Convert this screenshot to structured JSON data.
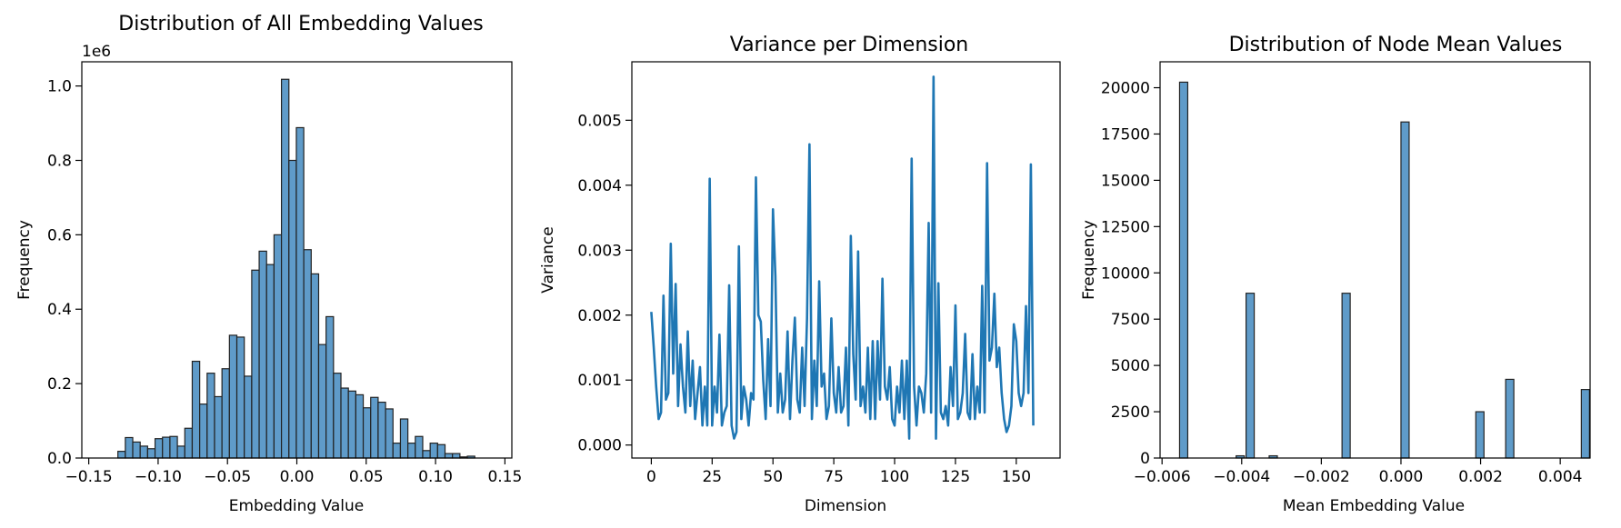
{
  "chart_data": [
    {
      "type": "bar",
      "title": "Distribution of All Embedding Values",
      "xlabel": "Embedding Value",
      "ylabel": "Frequency",
      "offset_text": "1e6",
      "xlim": [
        -0.155,
        0.155
      ],
      "ylim": [
        0,
        1.065
      ],
      "xticks": [
        -0.15,
        -0.1,
        -0.05,
        0.0,
        0.05,
        0.1,
        0.15
      ],
      "xtick_labels": [
        "−0.15",
        "−0.10",
        "−0.05",
        "0.00",
        "0.05",
        "0.10",
        "0.15"
      ],
      "yticks": [
        0.0,
        0.2,
        0.4,
        0.6,
        0.8,
        1.0
      ],
      "ytick_labels": [
        "0.0",
        "0.2",
        "0.4",
        "0.6",
        "0.8",
        "1.0"
      ],
      "bin_start": -0.129,
      "bin_width": 0.00536,
      "values": [
        0.018,
        0.055,
        0.043,
        0.032,
        0.025,
        0.052,
        0.056,
        0.058,
        0.032,
        0.08,
        0.26,
        0.145,
        0.228,
        0.165,
        0.24,
        0.33,
        0.325,
        0.22,
        0.505,
        0.556,
        0.52,
        0.6,
        1.018,
        0.8,
        0.888,
        0.56,
        0.495,
        0.305,
        0.38,
        0.228,
        0.188,
        0.18,
        0.17,
        0.135,
        0.163,
        0.15,
        0.132,
        0.04,
        0.105,
        0.04,
        0.058,
        0.02,
        0.04,
        0.036,
        0.012,
        0.012,
        0.003,
        0.005
      ]
    },
    {
      "type": "line",
      "title": "Variance per Dimension",
      "xlabel": "Dimension",
      "ylabel": "Variance",
      "xlim": [
        -8,
        168
      ],
      "ylim": [
        -0.0002,
        0.0059
      ],
      "xticks": [
        0,
        25,
        50,
        75,
        100,
        125,
        150
      ],
      "xtick_labels": [
        "0",
        "25",
        "50",
        "75",
        "100",
        "125",
        "150"
      ],
      "yticks": [
        0.0,
        0.001,
        0.002,
        0.003,
        0.004,
        0.005
      ],
      "ytick_labels": [
        "0.000",
        "0.001",
        "0.002",
        "0.003",
        "0.004",
        "0.005"
      ],
      "x_start": 0,
      "values": [
        0.00205,
        0.0015,
        0.0009,
        0.0004,
        0.0005,
        0.0023,
        0.0007,
        0.0008,
        0.0031,
        0.0011,
        0.00248,
        0.0006,
        0.00155,
        0.0009,
        0.0005,
        0.00175,
        0.0006,
        0.0013,
        0.0004,
        0.0008,
        0.0012,
        0.0003,
        0.0009,
        0.0003,
        0.0041,
        0.0003,
        0.0009,
        0.0005,
        0.0017,
        0.0003,
        0.0005,
        0.0006,
        0.00246,
        0.0003,
        0.0001,
        0.0002,
        0.00306,
        0.0004,
        0.0009,
        0.0007,
        0.0003,
        0.0008,
        0.0007,
        0.00412,
        0.002,
        0.0019,
        0.001,
        0.0004,
        0.00163,
        0.0006,
        0.00363,
        0.0026,
        0.0005,
        0.0011,
        0.0005,
        0.0007,
        0.00175,
        0.0004,
        0.0013,
        0.00196,
        0.0007,
        0.0005,
        0.0015,
        0.0006,
        0.00195,
        0.00463,
        0.0004,
        0.0013,
        0.0006,
        0.00252,
        0.0009,
        0.0011,
        0.0004,
        0.0006,
        0.00195,
        0.0008,
        0.0005,
        0.0012,
        0.0005,
        0.0006,
        0.0015,
        0.0003,
        0.00322,
        0.0014,
        0.0007,
        0.00298,
        0.0006,
        0.0009,
        0.0005,
        0.0015,
        0.0004,
        0.0016,
        0.0004,
        0.0016,
        0.0007,
        0.00256,
        0.0009,
        0.0007,
        0.0012,
        0.0004,
        0.0003,
        0.0009,
        0.0005,
        0.0013,
        0.0004,
        0.0013,
        0.0001,
        0.00441,
        0.0009,
        0.0003,
        0.0009,
        0.0008,
        0.0005,
        0.0011,
        0.00342,
        0.0005,
        0.00567,
        0.0001,
        0.00249,
        0.0005,
        0.0004,
        0.0006,
        0.0003,
        0.0012,
        0.0006,
        0.00215,
        0.0004,
        0.0005,
        0.0008,
        0.00171,
        0.0005,
        0.0004,
        0.0014,
        0.0004,
        0.0009,
        0.0005,
        0.00245,
        0.0005,
        0.00434,
        0.0013,
        0.0015,
        0.00233,
        0.0012,
        0.0015,
        0.0008,
        0.0004,
        0.0002,
        0.0003,
        0.0006,
        0.00186,
        0.0016,
        0.0008,
        0.0006,
        0.0008,
        0.00214,
        0.0008,
        0.00432,
        0.0003
      ]
    },
    {
      "type": "bar",
      "title": "Distribution of Node Mean Values",
      "xlabel": "Mean Embedding Value",
      "ylabel": "Frequency",
      "xlim": [
        -0.00605,
        0.00475
      ],
      "ylim": [
        0,
        21400
      ],
      "xticks": [
        -0.006,
        -0.004,
        -0.002,
        0.0,
        0.002,
        0.004
      ],
      "xtick_labels": [
        "−0.006",
        "−0.004",
        "−0.002",
        "0.000",
        "0.002",
        "0.004"
      ],
      "yticks": [
        0,
        2500,
        5000,
        7500,
        10000,
        12500,
        15000,
        17500,
        20000
      ],
      "ytick_labels": [
        "0",
        "2500",
        "5000",
        "7500",
        "10000",
        "12500",
        "15000",
        "17500",
        "20000"
      ],
      "bin_width": 0.000205,
      "bin_starts": [
        -0.00556,
        -0.00414,
        -0.00389,
        -0.00331,
        -0.00148,
        0.0,
        0.00188,
        0.00263,
        0.00453
      ],
      "values": [
        20300,
        120,
        8900,
        120,
        8900,
        18150,
        2500,
        4250,
        3700
      ]
    }
  ]
}
